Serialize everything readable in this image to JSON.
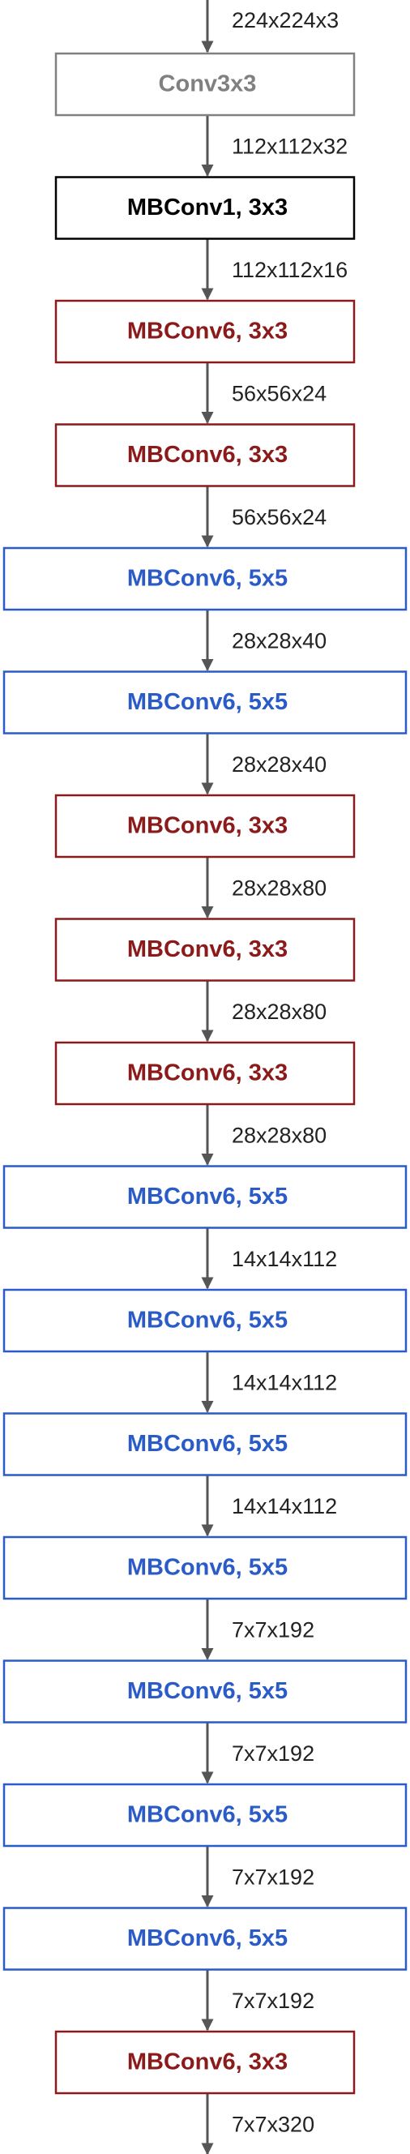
{
  "diagram": {
    "input_shape": "224x224x3",
    "colors": {
      "stem": "#808080",
      "mbconv1": "#000000",
      "mbconv6_3x3": "#8b1a1a",
      "mbconv6_5x5": "#2a5bc7",
      "arrow": "#555555"
    },
    "nodes": [
      {
        "label": "Conv3x3",
        "kind": "stem",
        "output": "112x112x32"
      },
      {
        "label": "MBConv1, 3x3",
        "kind": "mbconv1",
        "output": "112x112x16"
      },
      {
        "label": "MBConv6, 3x3",
        "kind": "mbconv6_3x3",
        "output": "56x56x24"
      },
      {
        "label": "MBConv6, 3x3",
        "kind": "mbconv6_3x3",
        "output": "56x56x24"
      },
      {
        "label": "MBConv6, 5x5",
        "kind": "mbconv6_5x5",
        "output": "28x28x40"
      },
      {
        "label": "MBConv6, 5x5",
        "kind": "mbconv6_5x5",
        "output": "28x28x40"
      },
      {
        "label": "MBConv6, 3x3",
        "kind": "mbconv6_3x3",
        "output": "28x28x80"
      },
      {
        "label": "MBConv6, 3x3",
        "kind": "mbconv6_3x3",
        "output": "28x28x80"
      },
      {
        "label": "MBConv6, 3x3",
        "kind": "mbconv6_3x3",
        "output": "28x28x80"
      },
      {
        "label": "MBConv6, 5x5",
        "kind": "mbconv6_5x5",
        "output": "14x14x112"
      },
      {
        "label": "MBConv6, 5x5",
        "kind": "mbconv6_5x5",
        "output": "14x14x112"
      },
      {
        "label": "MBConv6, 5x5",
        "kind": "mbconv6_5x5",
        "output": "14x14x112"
      },
      {
        "label": "MBConv6, 5x5",
        "kind": "mbconv6_5x5",
        "output": "7x7x192"
      },
      {
        "label": "MBConv6, 5x5",
        "kind": "mbconv6_5x5",
        "output": "7x7x192"
      },
      {
        "label": "MBConv6, 5x5",
        "kind": "mbconv6_5x5",
        "output": "7x7x192"
      },
      {
        "label": "MBConv6, 5x5",
        "kind": "mbconv6_5x5",
        "output": "7x7x192"
      },
      {
        "label": "MBConv6, 3x3",
        "kind": "mbconv6_3x3",
        "output": "7x7x320"
      }
    ]
  }
}
